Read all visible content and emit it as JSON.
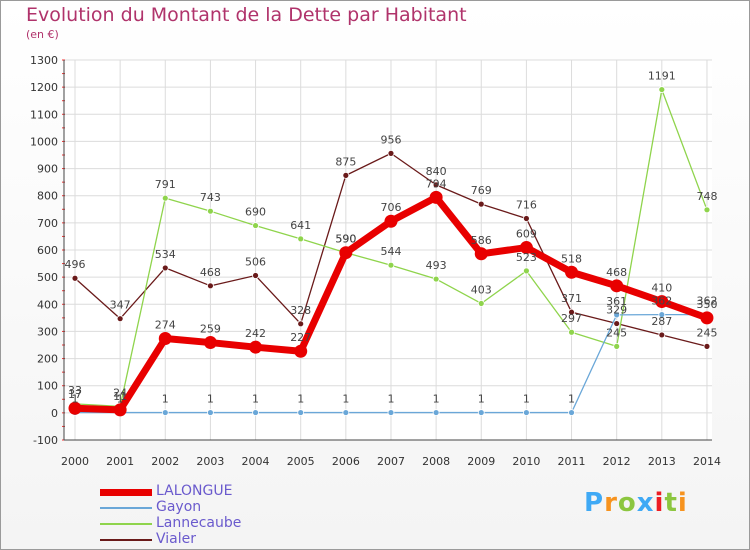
{
  "title": "Evolution du Montant de la Dette par Habitant",
  "unit": "(en €)",
  "logo": {
    "text": "Proxiti",
    "letter_colors": [
      "#3fa9f5",
      "#f7931e",
      "#8cc63f",
      "#3fa9f5",
      "#ed1c24",
      "#8cc63f",
      "#f7931e"
    ]
  },
  "chart_data": {
    "type": "line",
    "title": "Evolution du Montant de la Dette par Habitant",
    "ylabel": "(en €)",
    "xlabel": "",
    "x": [
      "2000",
      "2001",
      "2002",
      "2003",
      "2004",
      "2005",
      "2006",
      "2007",
      "2008",
      "2009",
      "2010",
      "2011",
      "2012",
      "2013",
      "2014"
    ],
    "ylim": [
      -100,
      1300
    ],
    "yticks": [
      -100,
      0,
      100,
      200,
      300,
      400,
      500,
      600,
      700,
      800,
      900,
      1000,
      1100,
      1200,
      1300
    ],
    "grid": true,
    "legend": "bottom-left",
    "series": [
      {
        "name": "LALONGUE",
        "color": "#e80000",
        "values": [
          17,
          11,
          274,
          259,
          242,
          227,
          590,
          706,
          794,
          586,
          609,
          518,
          468,
          410,
          350
        ]
      },
      {
        "name": "Gayon",
        "color": "#6aa7d8",
        "values": [
          1,
          1,
          1,
          1,
          1,
          1,
          1,
          1,
          1,
          1,
          1,
          1,
          361,
          362,
          362
        ]
      },
      {
        "name": "Lannecaube",
        "color": "#8fd44c",
        "values": [
          33,
          24,
          791,
          743,
          690,
          641,
          590,
          544,
          493,
          403,
          523,
          297,
          245,
          1191,
          748
        ]
      },
      {
        "name": "Vialer",
        "color": "#6a1a1a",
        "values": [
          496,
          347,
          534,
          468,
          506,
          328,
          875,
          956,
          840,
          769,
          716,
          371,
          329,
          287,
          245
        ]
      }
    ]
  }
}
